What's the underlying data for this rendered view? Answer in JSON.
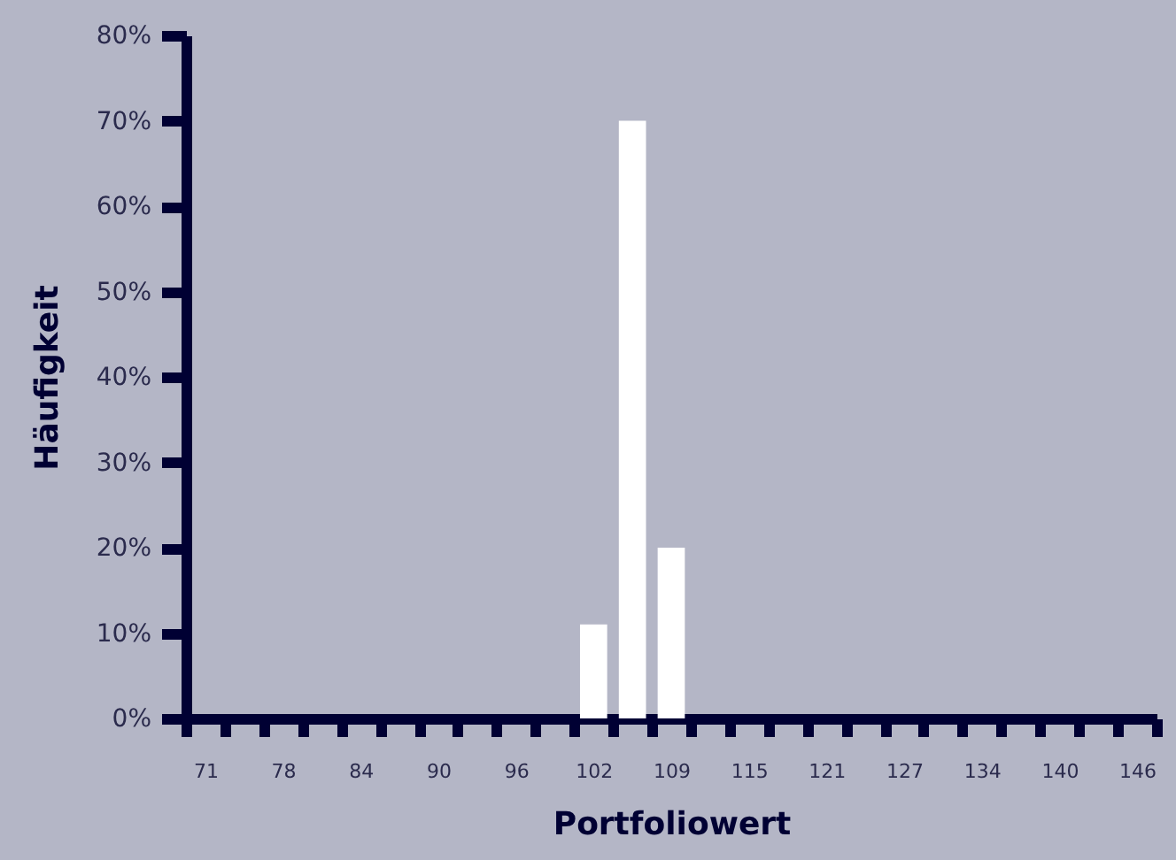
{
  "chart_data": {
    "type": "bar",
    "xlabel": "Portfoliowert",
    "ylabel": "Häufigkeit",
    "categories": [
      "71",
      null,
      "78",
      null,
      "84",
      null,
      "90",
      null,
      "96",
      null,
      "102",
      null,
      "109",
      null,
      "115",
      null,
      "121",
      null,
      "127",
      null,
      "134",
      null,
      "140",
      null,
      "146"
    ],
    "values": [
      0,
      0,
      0,
      0,
      0,
      0,
      0,
      0,
      0,
      0,
      11,
      70,
      20,
      0,
      0,
      0,
      0,
      0,
      0,
      0,
      0,
      0,
      0,
      0,
      0
    ],
    "color": "#ffffff",
    "ylim": [
      0,
      80
    ],
    "yticks": [
      {
        "value": 0,
        "label": "0%"
      },
      {
        "value": 10,
        "label": "10%"
      },
      {
        "value": 20,
        "label": "20%"
      },
      {
        "value": 30,
        "label": "30%"
      },
      {
        "value": 40,
        "label": "40%"
      },
      {
        "value": 50,
        "label": "50%"
      },
      {
        "value": 60,
        "label": "60%"
      },
      {
        "value": 70,
        "label": "70%"
      },
      {
        "value": 80,
        "label": "80%"
      }
    ]
  }
}
